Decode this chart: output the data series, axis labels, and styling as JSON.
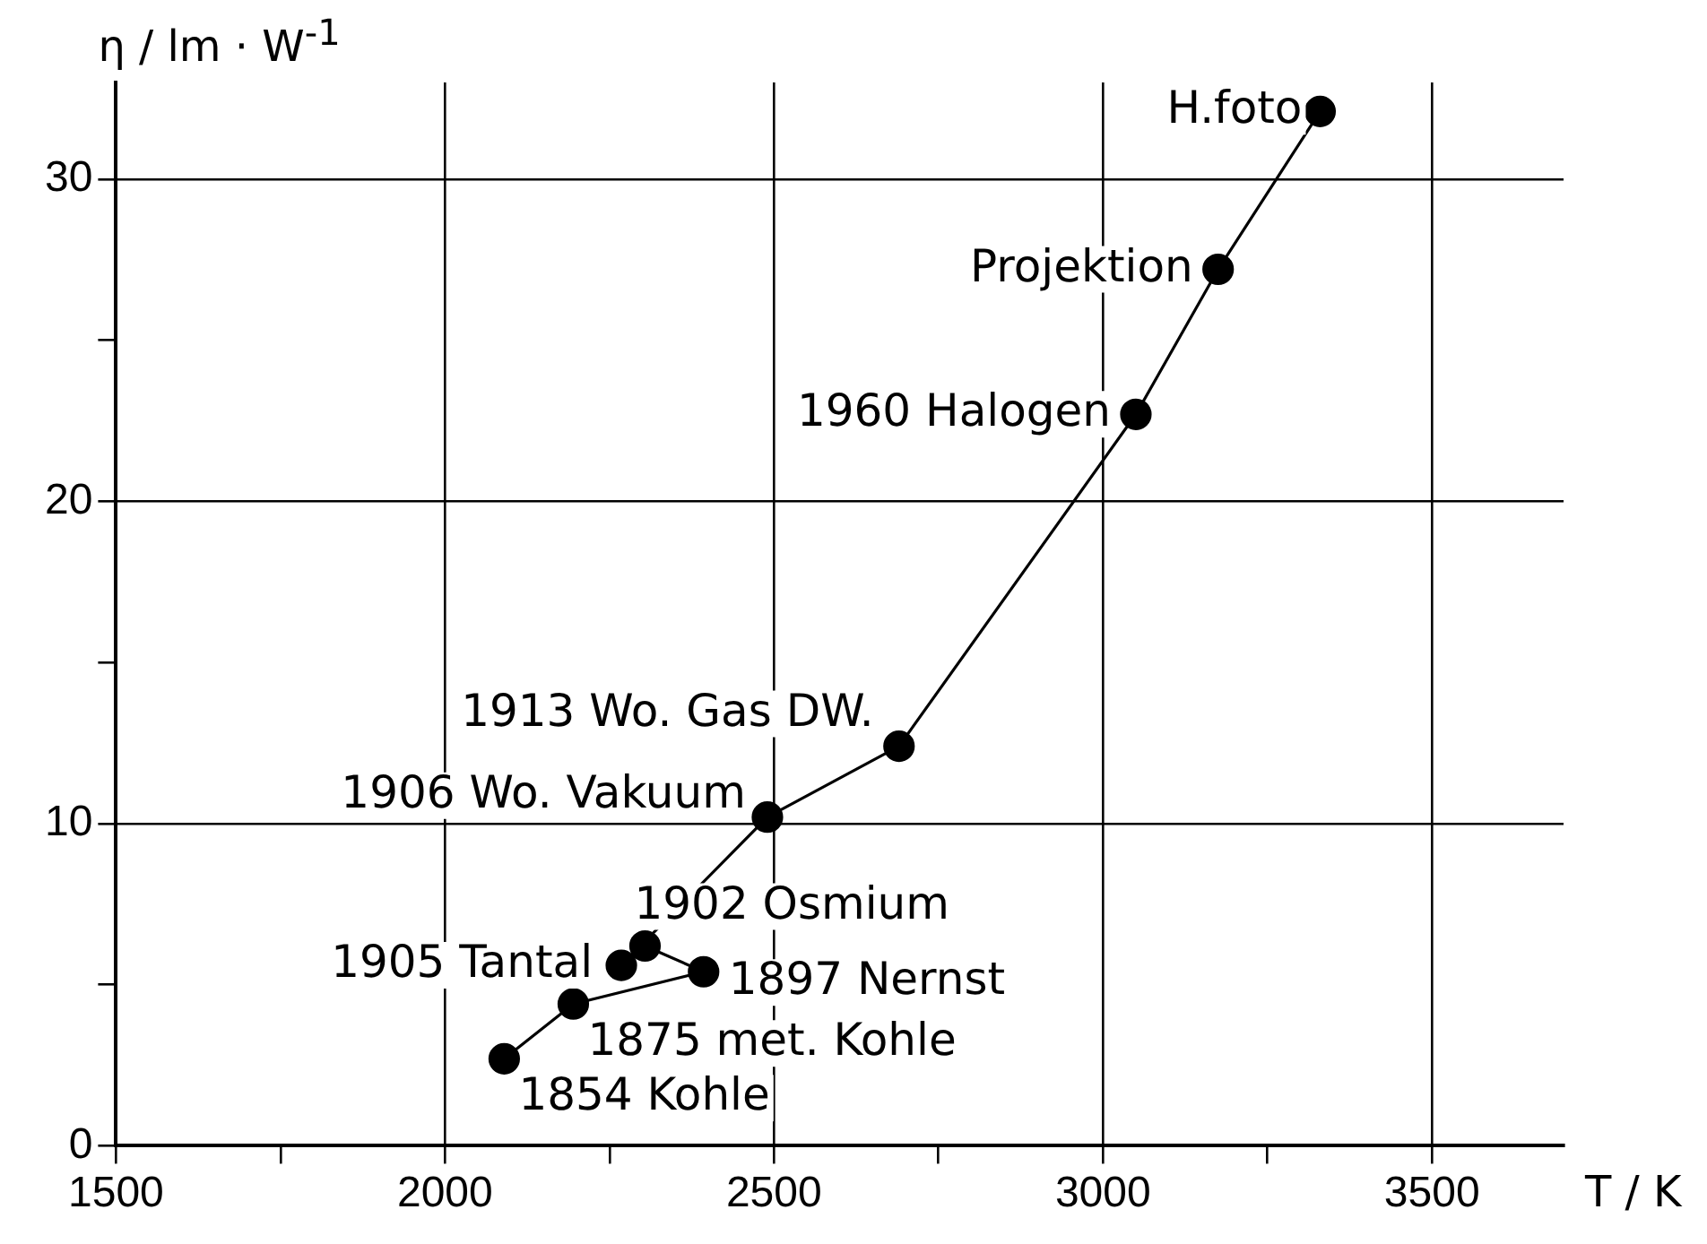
{
  "chart_data": {
    "type": "line",
    "xlabel": "T / K",
    "ylabel": "η / lm · W$^{-1}$",
    "x": [
      2090,
      2195,
      2393,
      2304,
      2268,
      2490,
      2690,
      3050,
      3175,
      3330
    ],
    "series": [
      {
        "color": "#000000",
        "values": [
          2.7,
          4.4,
          5.4,
          6.2,
          5.6,
          10.2,
          12.4,
          22.7,
          27.2,
          32.1
        ]
      }
    ],
    "xlim": [
      1500,
      3700
    ],
    "xticks": [
      1500,
      {
        "value": 1750,
        "label": null
      },
      2000,
      {
        "value": 2250,
        "label": null
      },
      2500,
      {
        "value": 2750,
        "label": null
      },
      3000,
      {
        "value": 3250,
        "label": null
      },
      3500
    ],
    "ylim": [
      0,
      33
    ],
    "yticks": [
      0,
      {
        "value": 5,
        "label": null
      },
      10,
      {
        "value": 15,
        "label": null
      },
      20,
      {
        "value": 25,
        "label": null
      },
      30
    ],
    "grid": true,
    "marker": "circle",
    "line_style": "solid",
    "legend": false,
    "annotations": [
      {
        "text": "1854 Kohle",
        "x": 2090,
        "y": 2.7
      },
      {
        "text": "1875 met. Kohle",
        "x": 2195,
        "y": 4.4
      },
      {
        "text": "1897 Nernst",
        "x": 2393,
        "y": 5.4
      },
      {
        "text": "1902 Osmium",
        "x": 2304,
        "y": 6.2
      },
      {
        "text": "1905 Tantal",
        "x": 2268,
        "y": 5.6
      },
      {
        "text": "1906 Wo. Vakuum",
        "x": 2490,
        "y": 10.2
      },
      {
        "text": "1913 Wo. Gas DW.",
        "x": 2690,
        "y": 12.4
      },
      {
        "text": "1960 Halogen",
        "x": 3050,
        "y": 22.7
      },
      {
        "text": "Projektion",
        "x": 3175,
        "y": 27.2
      },
      {
        "text": "H.foto",
        "x": 3330,
        "y": 32.1
      }
    ]
  }
}
